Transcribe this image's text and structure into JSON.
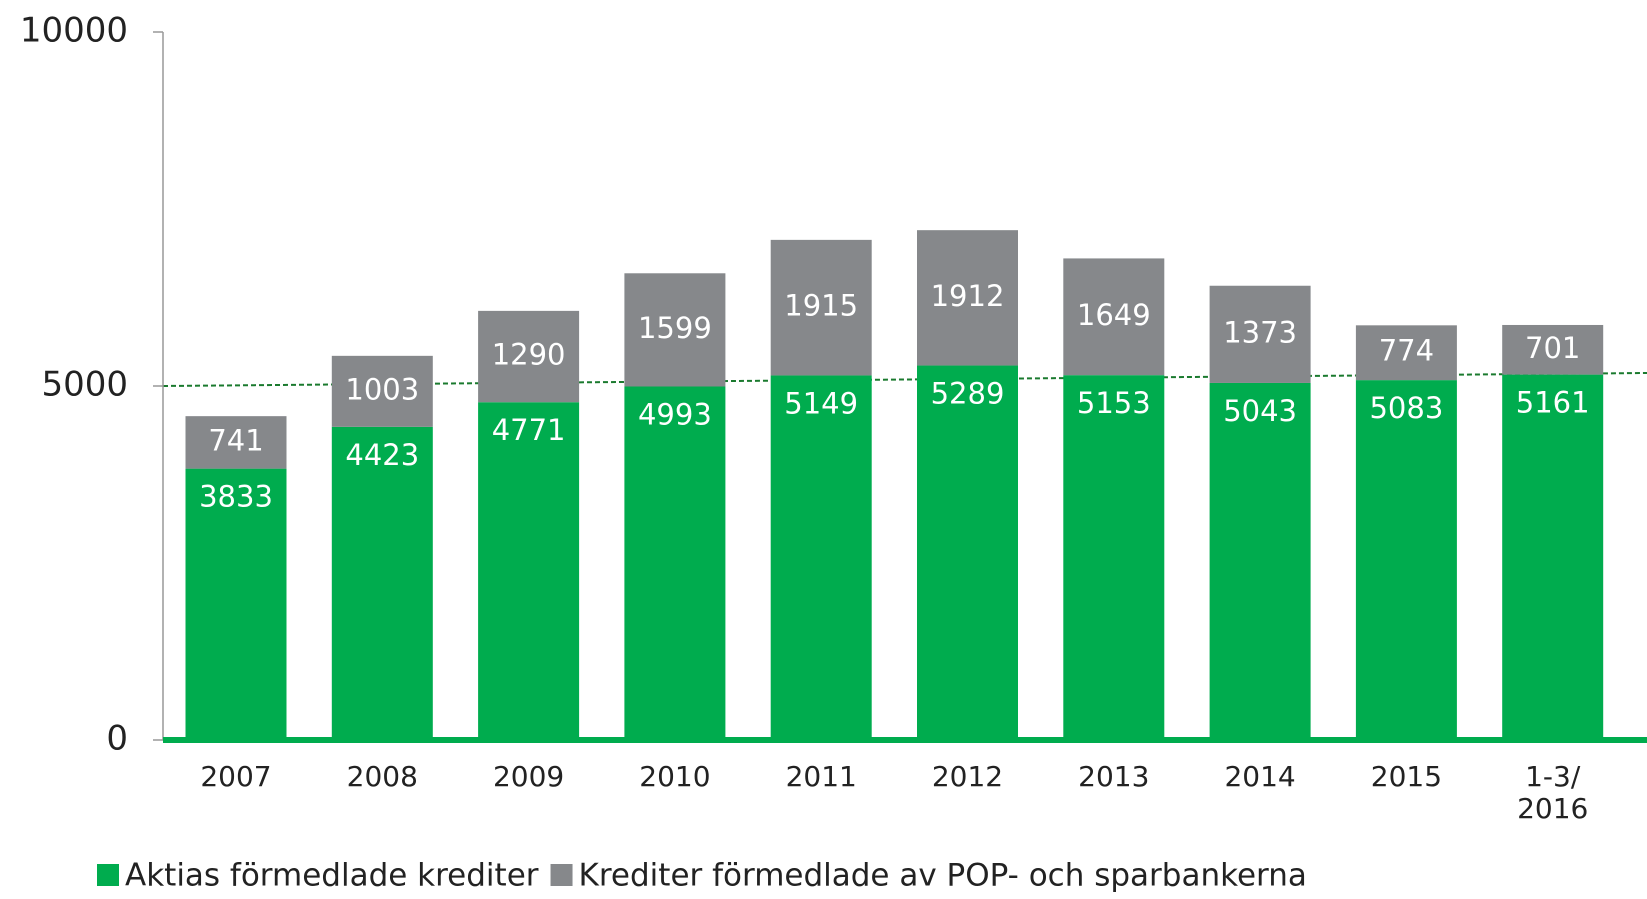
{
  "chart_data": {
    "type": "stacked_bar",
    "categories": [
      "2007",
      "2008",
      "2009",
      "2010",
      "2011",
      "2012",
      "2013",
      "2014",
      "2015",
      "1-3/\n2016"
    ],
    "series": [
      {
        "name": "Aktias förmedlade krediter",
        "color": "#00ac4e",
        "values": [
          3833,
          4423,
          4771,
          4993,
          5149,
          5289,
          5153,
          5043,
          5083,
          5161
        ]
      },
      {
        "name": "Krediter förmedlade av POP- och sparbankerna",
        "color": "#86888b",
        "values": [
          741,
          1003,
          1290,
          1599,
          1915,
          1912,
          1649,
          1373,
          774,
          701
        ]
      }
    ],
    "ylim": [
      0,
      10000
    ],
    "yticks": [
      0,
      5000,
      10000
    ]
  }
}
